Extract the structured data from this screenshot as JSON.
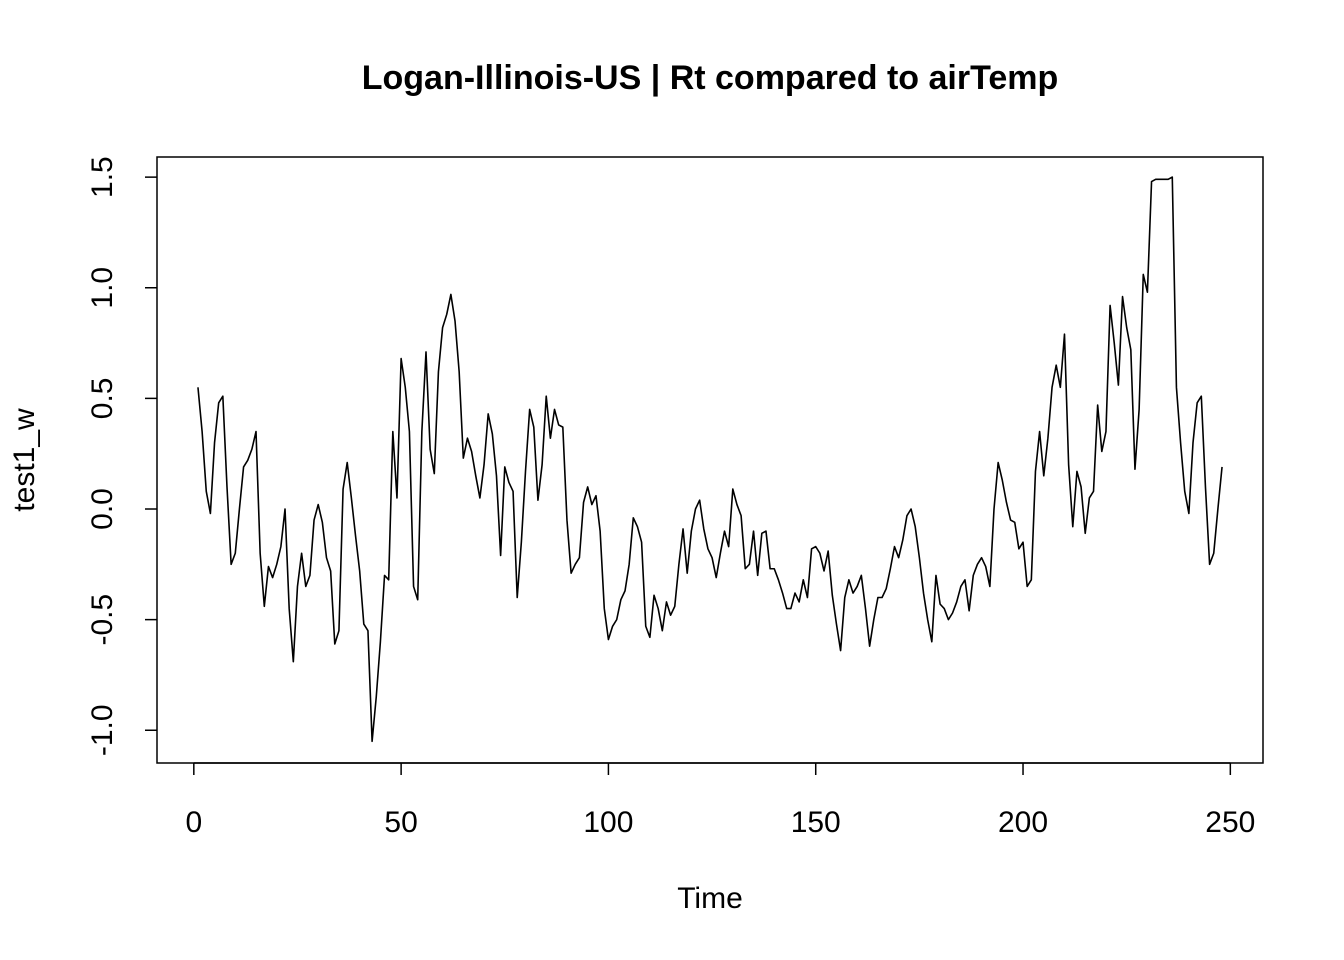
{
  "chart_data": {
    "type": "line",
    "title": "Logan-Illinois-US | Rt compared to airTemp",
    "x_label": "Time",
    "y_label": "test1_w",
    "color": "#000000",
    "x": [
      1,
      2,
      3,
      4,
      5,
      6,
      7,
      8,
      9,
      10,
      11,
      12,
      13,
      14,
      15,
      16,
      17,
      18,
      19,
      20,
      21,
      22,
      23,
      24,
      25,
      26,
      27,
      28,
      29,
      30,
      31,
      32,
      33,
      34,
      35,
      36,
      37,
      38,
      39,
      40,
      41,
      42,
      43,
      44,
      45,
      46,
      47,
      48,
      49,
      50,
      51,
      52,
      53,
      54,
      55,
      56,
      57,
      58,
      59,
      60,
      61,
      62,
      63,
      64,
      65,
      66,
      67,
      68,
      69,
      70,
      71,
      72,
      73,
      74,
      75,
      76,
      77,
      78,
      79,
      80,
      81,
      82,
      83,
      84,
      85,
      86,
      87,
      88,
      89,
      90,
      91,
      92,
      93,
      94,
      95,
      96,
      97,
      98,
      99,
      100,
      101,
      102,
      103,
      104,
      105,
      106,
      107,
      108,
      109,
      110,
      111,
      112,
      113,
      114,
      115,
      116,
      117,
      118,
      119,
      120,
      121,
      122,
      123,
      124,
      125,
      126,
      127,
      128,
      129,
      130,
      131,
      132,
      133,
      134,
      135,
      136,
      137,
      138,
      139,
      140,
      141,
      142,
      143,
      144,
      145,
      146,
      147,
      148,
      149,
      150,
      151,
      152,
      153,
      154,
      155,
      156,
      157,
      158,
      159,
      160,
      161,
      162,
      163,
      164,
      165,
      166,
      167,
      168,
      169,
      170,
      171,
      172,
      173,
      174,
      175,
      176,
      177,
      178,
      179,
      180,
      181,
      182,
      183,
      184,
      185,
      186,
      187,
      188,
      189,
      190,
      191,
      192,
      193,
      194,
      195,
      196,
      197,
      198,
      199,
      200,
      201,
      202,
      203,
      204,
      205,
      206,
      207,
      208,
      209,
      210,
      211,
      212,
      213,
      214,
      215,
      216,
      217,
      218,
      219,
      220,
      221,
      222,
      223,
      224,
      225,
      226,
      227,
      228,
      229,
      230,
      231,
      232,
      233,
      234,
      235,
      236,
      237,
      238,
      239,
      240,
      241,
      242,
      243,
      244,
      245,
      246,
      247,
      248
    ],
    "values": [
      0.55,
      0.35,
      0.08,
      -0.02,
      0.3,
      0.48,
      0.51,
      0.1,
      -0.25,
      -0.2,
      0.0,
      0.19,
      0.22,
      0.27,
      0.35,
      -0.2,
      -0.44,
      -0.26,
      -0.31,
      -0.25,
      -0.17,
      0.0,
      -0.45,
      -0.69,
      -0.35,
      -0.2,
      -0.35,
      -0.3,
      -0.05,
      0.02,
      -0.06,
      -0.22,
      -0.28,
      -0.61,
      -0.55,
      0.09,
      0.21,
      0.05,
      -0.12,
      -0.28,
      -0.52,
      -0.55,
      -1.05,
      -0.85,
      -0.6,
      -0.3,
      -0.32,
      0.35,
      0.05,
      0.68,
      0.55,
      0.35,
      -0.35,
      -0.41,
      0.35,
      0.71,
      0.27,
      0.16,
      0.62,
      0.82,
      0.88,
      0.97,
      0.85,
      0.62,
      0.23,
      0.32,
      0.26,
      0.15,
      0.05,
      0.2,
      0.43,
      0.34,
      0.15,
      -0.21,
      0.19,
      0.12,
      0.08,
      -0.4,
      -0.15,
      0.17,
      0.45,
      0.37,
      0.04,
      0.2,
      0.51,
      0.32,
      0.45,
      0.38,
      0.37,
      -0.05,
      -0.29,
      -0.25,
      -0.22,
      0.03,
      0.1,
      0.02,
      0.06,
      -0.1,
      -0.45,
      -0.59,
      -0.53,
      -0.5,
      -0.41,
      -0.37,
      -0.25,
      -0.04,
      -0.08,
      -0.15,
      -0.53,
      -0.58,
      -0.39,
      -0.45,
      -0.55,
      -0.42,
      -0.48,
      -0.44,
      -0.25,
      -0.09,
      -0.29,
      -0.1,
      0.0,
      0.04,
      -0.09,
      -0.18,
      -0.22,
      -0.31,
      -0.2,
      -0.1,
      -0.17,
      0.09,
      0.02,
      -0.03,
      -0.27,
      -0.25,
      -0.1,
      -0.3,
      -0.11,
      -0.1,
      -0.27,
      -0.27,
      -0.32,
      -0.38,
      -0.45,
      -0.45,
      -0.38,
      -0.42,
      -0.32,
      -0.4,
      -0.18,
      -0.17,
      -0.2,
      -0.28,
      -0.19,
      -0.39,
      -0.52,
      -0.64,
      -0.4,
      -0.32,
      -0.38,
      -0.35,
      -0.3,
      -0.45,
      -0.62,
      -0.5,
      -0.4,
      -0.4,
      -0.36,
      -0.27,
      -0.17,
      -0.22,
      -0.14,
      -0.03,
      0.0,
      -0.08,
      -0.22,
      -0.38,
      -0.5,
      -0.6,
      -0.3,
      -0.43,
      -0.45,
      -0.5,
      -0.47,
      -0.42,
      -0.35,
      -0.32,
      -0.46,
      -0.3,
      -0.25,
      -0.22,
      -0.26,
      -0.35,
      0.0,
      0.21,
      0.13,
      0.03,
      -0.05,
      -0.06,
      -0.18,
      -0.15,
      -0.35,
      -0.32,
      0.17,
      0.35,
      0.15,
      0.32,
      0.55,
      0.65,
      0.55,
      0.79,
      0.2,
      -0.08,
      0.17,
      0.1,
      -0.11,
      0.05,
      0.08,
      0.47,
      0.26,
      0.35,
      0.92,
      0.75,
      0.56,
      0.96,
      0.82,
      0.72,
      0.18,
      0.45,
      1.06,
      0.98,
      1.48,
      1.49,
      1.49,
      1.49,
      1.49,
      1.5,
      0.55,
      0.3,
      0.08,
      -0.02,
      0.3,
      0.48,
      0.51,
      0.1,
      -0.25,
      -0.2,
      0.0,
      0.19
    ],
    "xlim": [
      -8.88,
      257.88
    ],
    "xticks": [
      0,
      50,
      100,
      150,
      200,
      250
    ],
    "ylim": [
      -1.148,
      1.591
    ],
    "yticks": [
      {
        "value": -1,
        "label": "-1.0"
      },
      {
        "value": -0.5,
        "label": "-0.5"
      },
      {
        "value": 0,
        "label": "0.0"
      },
      {
        "value": 0.5,
        "label": "0.5"
      },
      {
        "value": 1,
        "label": "1.0"
      },
      {
        "value": 1.5,
        "label": "1.5"
      }
    ],
    "grid": false
  }
}
